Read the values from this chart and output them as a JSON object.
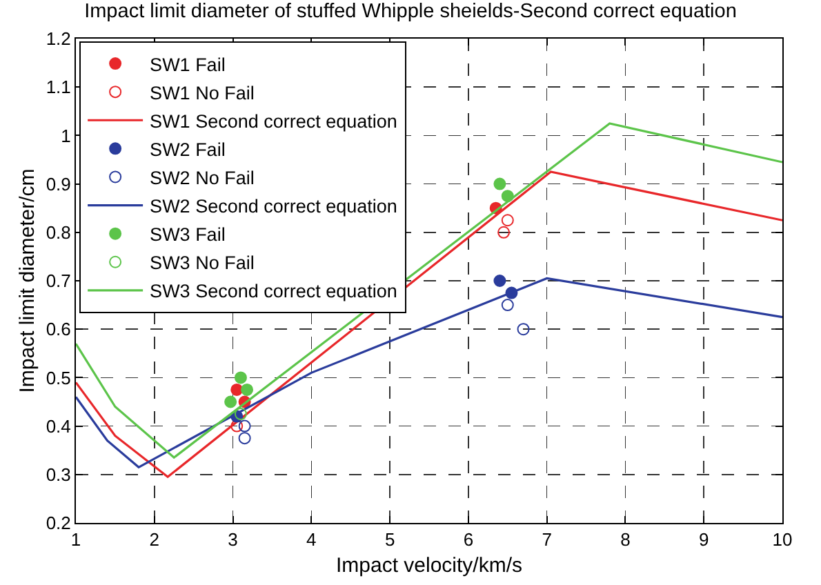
{
  "chart_data": {
    "type": "scatter",
    "title": "Impact limit diameter of stuffed Whipple sheields-Second correct equation",
    "xlabel": "Impact velocity/km/s",
    "ylabel": "Impact limit diameter/cm",
    "xlim": [
      1,
      10
    ],
    "xticks": [
      1,
      2,
      3,
      4,
      5,
      6,
      7,
      8,
      9,
      10
    ],
    "ylim": [
      0.2,
      1.2
    ],
    "yticks": [
      0.2,
      0.3,
      0.4,
      0.5,
      0.6,
      0.7,
      0.8,
      0.9,
      1,
      1.1,
      1.2
    ],
    "grid": true,
    "legend": "top left",
    "series": [
      {
        "name": "SW1 Fail",
        "marker": "circle",
        "color": "#e8272a",
        "x": [
          3.05,
          3.15,
          6.35
        ],
        "values": [
          0.475,
          0.45,
          0.85
        ]
      },
      {
        "name": "SW1 No Fail",
        "marker": "circle-open",
        "color": "#e8272a",
        "x": [
          3.05,
          6.45,
          6.5
        ],
        "values": [
          0.4,
          0.8,
          0.825
        ]
      },
      {
        "name": "SW1 Second correct equation",
        "type": "line",
        "marker": "none",
        "line_style": "solid",
        "color": "#e8272a",
        "x": [
          1,
          1.5,
          2.17,
          7.05,
          10
        ],
        "values": [
          0.49,
          0.38,
          0.295,
          0.925,
          0.825
        ]
      },
      {
        "name": "SW2 Fail",
        "marker": "circle",
        "color": "#2a3c9c",
        "x": [
          3.05,
          6.4,
          6.55
        ],
        "values": [
          0.42,
          0.7,
          0.675
        ]
      },
      {
        "name": "SW2 No Fail",
        "marker": "circle-open",
        "color": "#2a3c9c",
        "x": [
          3.15,
          3.15,
          6.5,
          6.7
        ],
        "values": [
          0.4,
          0.375,
          0.65,
          0.6
        ]
      },
      {
        "name": "SW2 Second correct equation",
        "type": "line",
        "marker": "none",
        "line_style": "solid",
        "color": "#2a3c9c",
        "x": [
          1,
          1.4,
          1.8,
          4,
          7,
          10
        ],
        "values": [
          0.46,
          0.37,
          0.315,
          0.51,
          0.705,
          0.625
        ]
      },
      {
        "name": "SW3 Fail",
        "marker": "circle",
        "color": "#5cc44a",
        "x": [
          2.97,
          3.1,
          3.18,
          6.4,
          6.5
        ],
        "values": [
          0.45,
          0.5,
          0.475,
          0.9,
          0.875
        ]
      },
      {
        "name": "SW3 No Fail",
        "marker": "circle-open",
        "color": "#5cc44a",
        "x": [
          3.1
        ],
        "values": [
          0.425
        ]
      },
      {
        "name": "SW3 Second correct equation",
        "type": "line",
        "marker": "none",
        "line_style": "solid",
        "color": "#5cc44a",
        "x": [
          1,
          1.5,
          2.25,
          7.8,
          10
        ],
        "values": [
          0.57,
          0.44,
          0.335,
          1.025,
          0.945
        ]
      }
    ]
  }
}
